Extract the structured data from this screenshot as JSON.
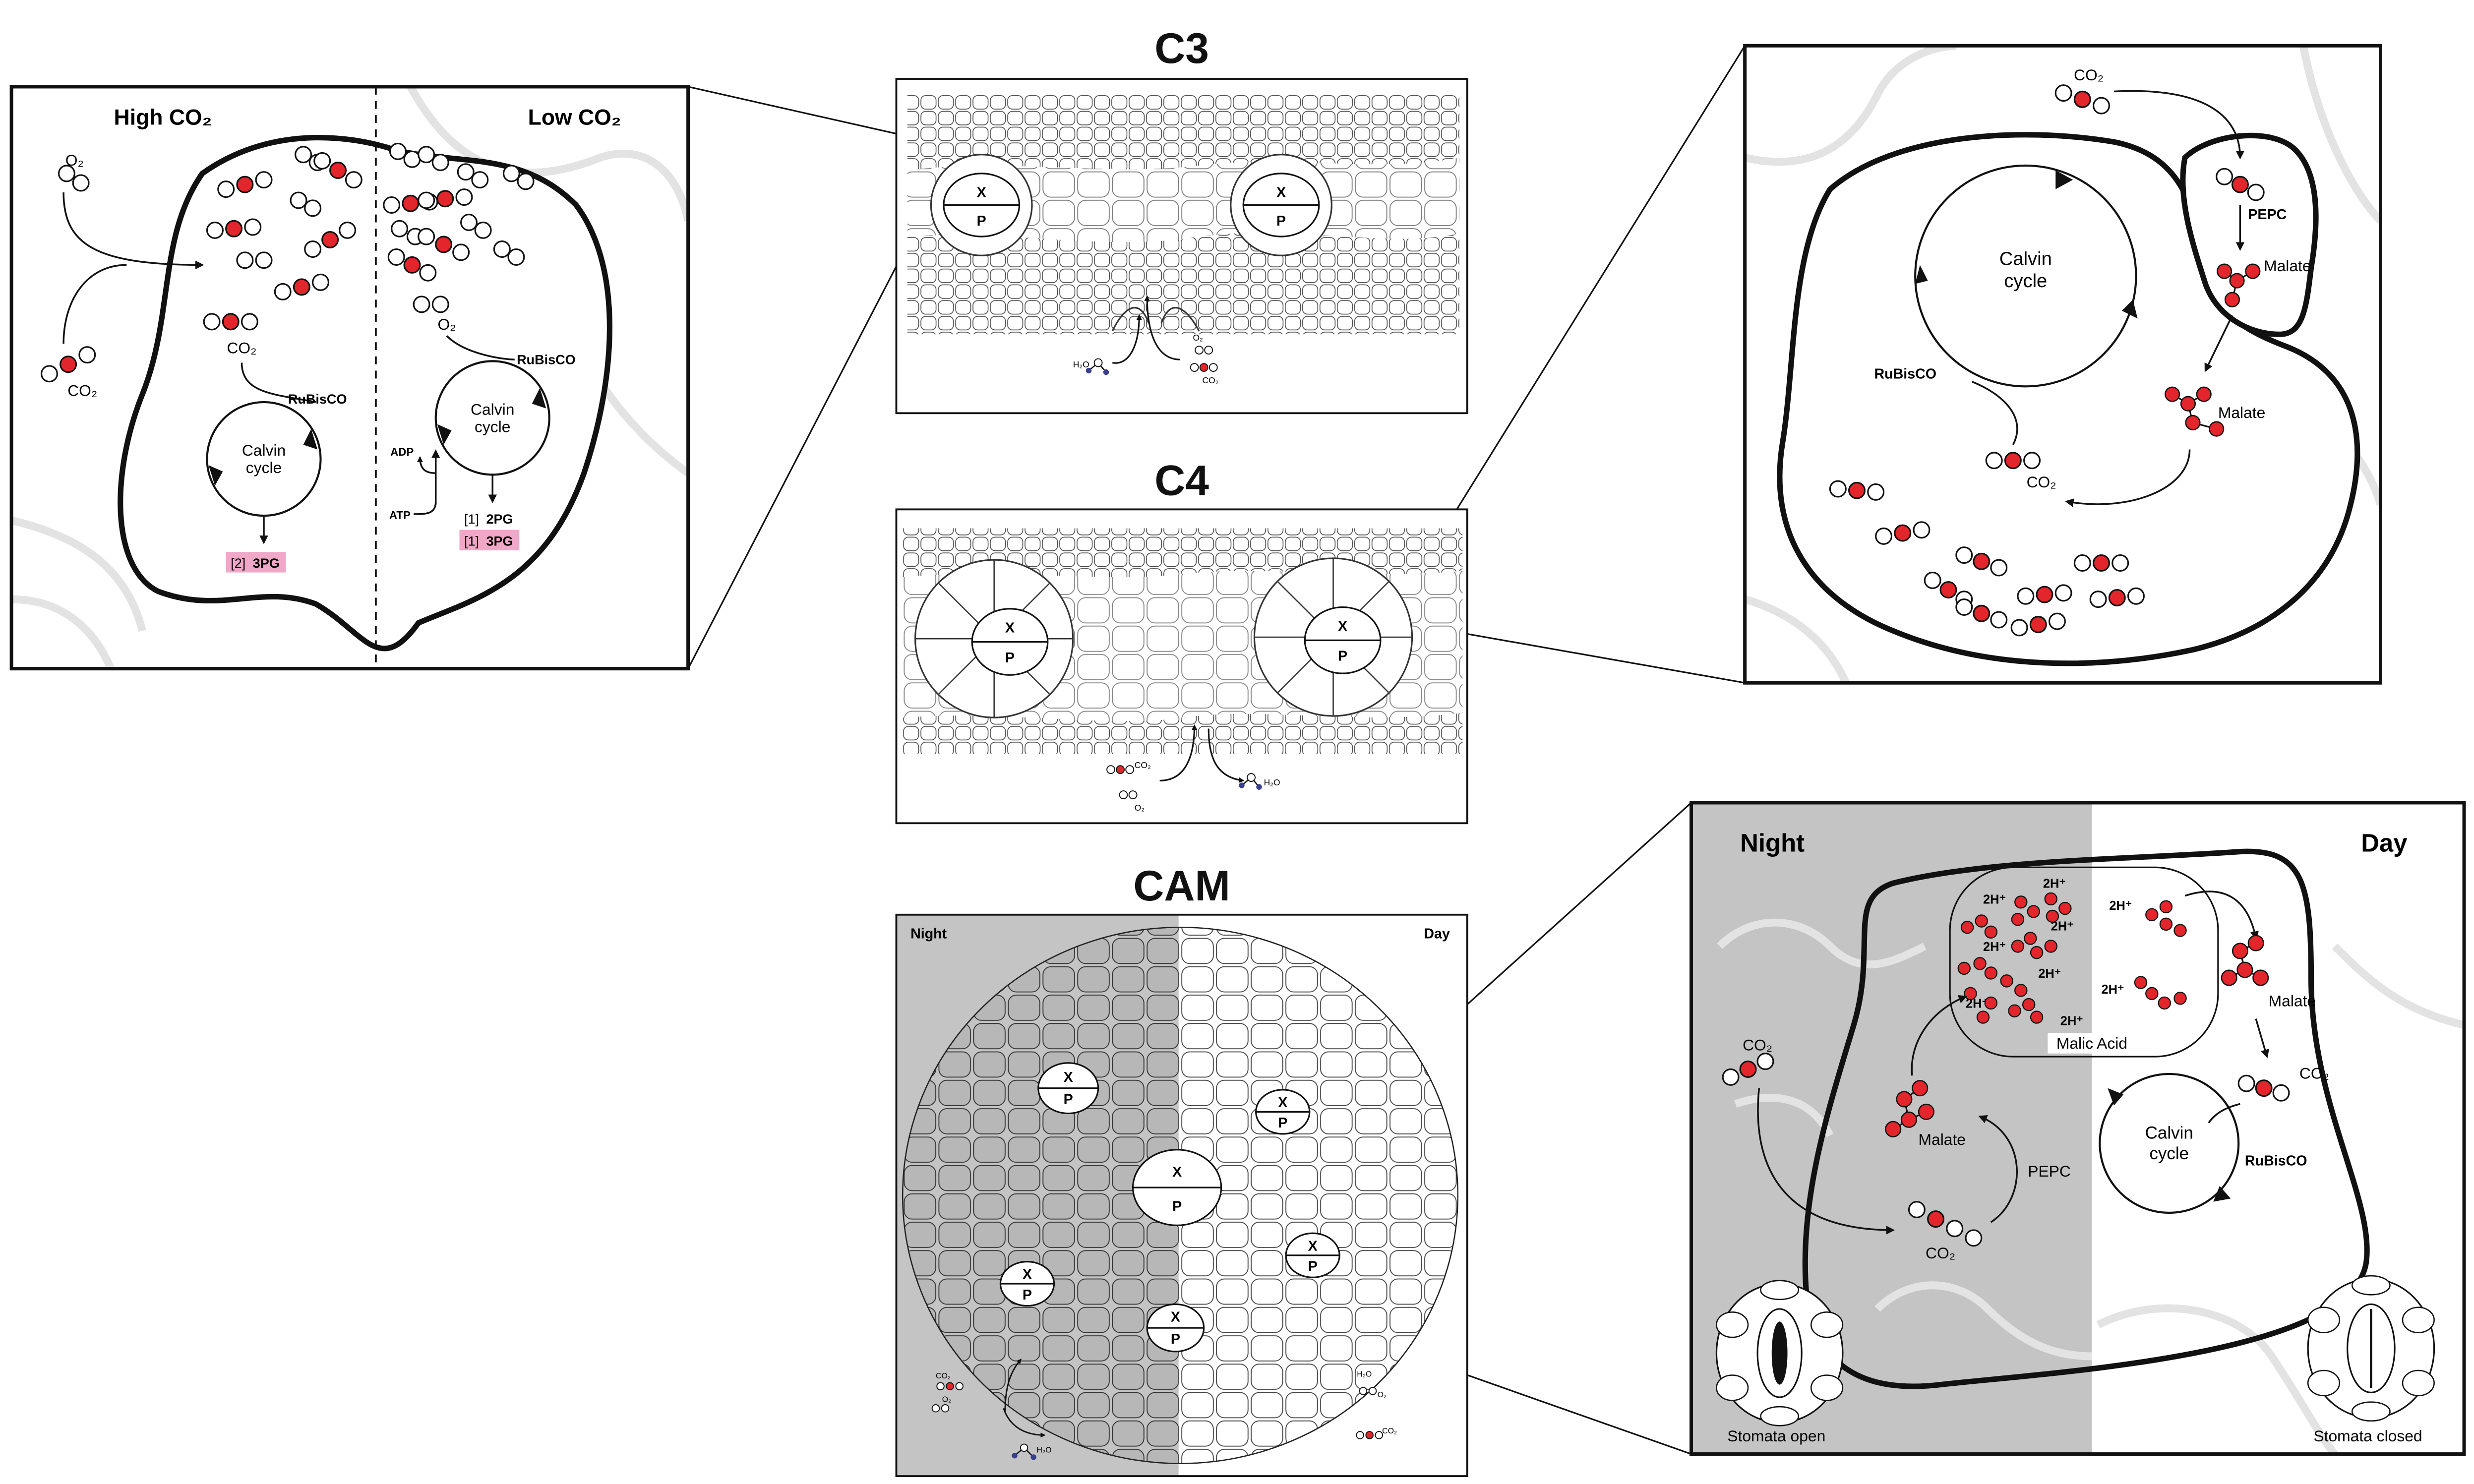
{
  "headings": {
    "c3": "C3",
    "c4": "C4",
    "cam": "CAM"
  },
  "c3_zoom": {
    "high_co2": "High CO₂",
    "low_co2": "Low CO₂",
    "o2": "O₂",
    "co2": "CO₂",
    "rubisco": "RuBisCO",
    "calvin_line1": "Calvin",
    "calvin_line2": "cycle",
    "adp": "ADP",
    "atp": "ATP",
    "pg3_high_prefix": "[2]",
    "pg3_high": "3PG",
    "pg2_prefix": "[1]",
    "pg2": "2PG",
    "pg3_low_prefix": "[1]",
    "pg3_low": "3PG"
  },
  "leaf": {
    "x": "X",
    "p": "P",
    "h2o": "H₂O",
    "o2": "O₂",
    "co2": "CO₂",
    "night": "Night",
    "day": "Day"
  },
  "c4_zoom": {
    "co2_top": "CO₂",
    "pepc": "PEPC",
    "malate_1": "Malate",
    "calvin_line1": "Calvin",
    "calvin_line2": "cycle",
    "rubisco": "RuBisCO",
    "malate_2": "Malate",
    "co2_bottom": "CO₂"
  },
  "cam_zoom": {
    "night": "Night",
    "day": "Day",
    "h_ion": "2H⁺",
    "malic_acid": "Malic Acid",
    "co2_left": "CO₂",
    "malate_left": "Malate",
    "pepc": "PEPC",
    "co2_bottom": "CO₂",
    "malate_right": "Malate",
    "co2_right": "CO₂",
    "calvin_line1": "Calvin",
    "calvin_line2": "cycle",
    "rubisco": "RuBisCO",
    "stomata_open": "Stomata open",
    "stomata_closed": "Stomata closed"
  },
  "colors": {
    "ink": "#111111",
    "red": "#e2262b",
    "highlight": "#f0a8c8",
    "night_grey": "#c4c4c4",
    "bg_lines": "#e3e3e3",
    "water_blue": "#3a3f8c"
  }
}
